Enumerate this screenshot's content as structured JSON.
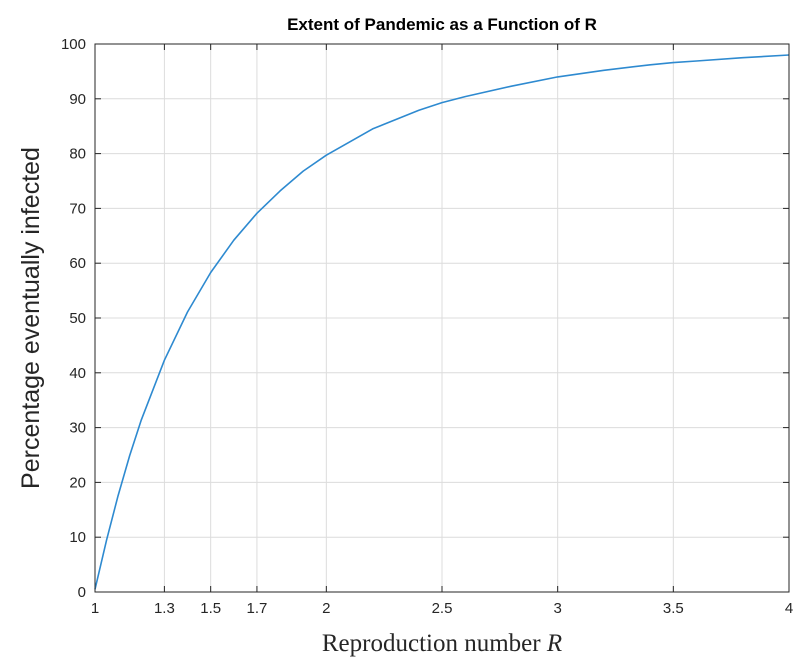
{
  "chart_data": {
    "type": "line",
    "title": "Extent of Pandemic as a Function of R",
    "xlabel": "Reproduction number",
    "xlabel_var": "R",
    "ylabel": "Percentage eventually infected",
    "xlim": [
      1,
      4
    ],
    "ylim": [
      0,
      100
    ],
    "xticks": [
      1,
      1.3,
      1.5,
      1.7,
      2,
      2.5,
      3,
      3.5,
      4
    ],
    "xtick_labels": [
      "1",
      "1.3",
      "1.5",
      "1.7",
      "2",
      "2.5",
      "3",
      "3.5",
      "4"
    ],
    "yticks": [
      0,
      10,
      20,
      30,
      40,
      50,
      60,
      70,
      80,
      90,
      100
    ],
    "ytick_labels": [
      "0",
      "10",
      "20",
      "30",
      "40",
      "50",
      "60",
      "70",
      "80",
      "90",
      "100"
    ],
    "grid": true,
    "line_color": "#2e8ad0",
    "series": [
      {
        "x": [
          1.0,
          1.05,
          1.1,
          1.15,
          1.2,
          1.3,
          1.4,
          1.5,
          1.6,
          1.7,
          1.8,
          1.9,
          2.0,
          2.2,
          2.4,
          2.5,
          2.6,
          2.8,
          3.0,
          3.2,
          3.4,
          3.5,
          3.6,
          3.8,
          4.0
        ],
        "values": [
          0.5,
          9.5,
          17.6,
          24.9,
          31.4,
          42.3,
          51.1,
          58.3,
          64.2,
          69.1,
          73.2,
          76.8,
          79.7,
          84.5,
          87.9,
          89.3,
          90.4,
          92.3,
          94.0,
          95.2,
          96.2,
          96.6,
          96.9,
          97.5,
          98.0
        ]
      }
    ]
  }
}
